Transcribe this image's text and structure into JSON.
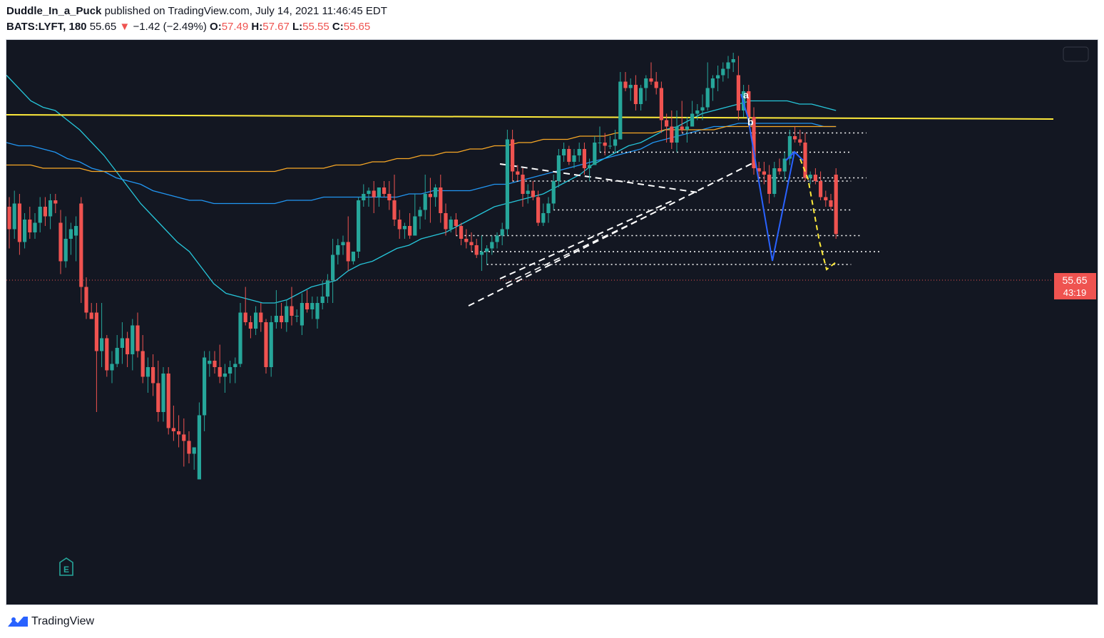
{
  "header": {
    "author": "Duddle_In_a_Puck",
    "published_text": "published on TradingView.com, July 14, 2021 11:46:45 EDT",
    "symbol": "BATS:LYFT, 180",
    "last": "55.65",
    "arrow": "▼",
    "change": "−1.42 (−2.49%)",
    "o_label": "O:",
    "o_value": "57.49",
    "h_label": "H:",
    "h_value": "57.67",
    "l_label": "L:",
    "l_value": "55.55",
    "c_label": "C:",
    "c_value": "55.65"
  },
  "price_tag": {
    "price": "55.65",
    "countdown": "43:19",
    "color": "#ef5350"
  },
  "earnings_marker": {
    "label": "E"
  },
  "drawing_labels": {
    "a": "a",
    "b": "b"
  },
  "footer": {
    "brand": "TradingView",
    "logo_icon": "tradingview-logo-icon"
  },
  "colors": {
    "background": "#131722",
    "up": "#26a69a",
    "down": "#ef5350",
    "ma_fast": "#26c6da",
    "ma_mid": "#2196f3",
    "ma_slow": "#f9a825",
    "resistance": "#ffeb3b",
    "wave": "#2962ff",
    "dash_projection": "#ffeb3b"
  },
  "chart_data": {
    "type": "candlestick",
    "symbol": "BATS:LYFT",
    "interval": "180",
    "last_price": 55.65,
    "ylim": [
      44.1,
      61.7
    ],
    "y_axis_visible": false,
    "grid": false,
    "candles": [
      [
        56.5,
        56.8,
        55.2,
        55.8
      ],
      [
        55.8,
        57.0,
        55.5,
        56.6
      ],
      [
        56.6,
        56.9,
        55.0,
        55.4
      ],
      [
        55.4,
        56.3,
        55.2,
        56.1
      ],
      [
        56.1,
        56.5,
        55.5,
        55.7
      ],
      [
        55.7,
        56.3,
        55.5,
        56.0
      ],
      [
        56.0,
        56.8,
        55.7,
        56.5
      ],
      [
        56.5,
        56.8,
        55.9,
        56.2
      ],
      [
        56.2,
        56.9,
        55.8,
        56.7
      ],
      [
        56.7,
        56.9,
        56.3,
        56.6
      ],
      [
        56.0,
        56.4,
        54.4,
        54.8
      ],
      [
        54.8,
        56.2,
        54.6,
        55.5
      ],
      [
        55.5,
        56.0,
        55.0,
        55.8
      ],
      [
        55.6,
        56.2,
        54.8,
        55.9
      ],
      [
        56.6,
        56.8,
        53.5,
        54.0
      ],
      [
        54.0,
        54.3,
        53.0,
        53.2
      ],
      [
        53.2,
        53.5,
        53.1,
        53.0
      ],
      [
        53.2,
        53.5,
        50.1,
        52.0
      ],
      [
        52.0,
        53.5,
        51.5,
        52.4
      ],
      [
        52.4,
        52.5,
        51.2,
        51.4
      ],
      [
        51.4,
        52.0,
        51.0,
        51.6
      ],
      [
        51.6,
        52.5,
        51.5,
        52.1
      ],
      [
        52.1,
        52.9,
        51.6,
        52.4
      ],
      [
        52.4,
        52.6,
        51.5,
        51.9
      ],
      [
        51.9,
        53.0,
        51.4,
        52.8
      ],
      [
        52.8,
        53.2,
        51.8,
        52.0
      ],
      [
        52.0,
        52.5,
        51.0,
        51.2
      ],
      [
        51.2,
        51.8,
        50.7,
        51.5
      ],
      [
        51.5,
        51.9,
        50.6,
        51.0
      ],
      [
        51.0,
        51.7,
        49.8,
        50.1
      ],
      [
        50.1,
        51.5,
        49.8,
        51.3
      ],
      [
        51.3,
        51.5,
        49.4,
        49.6
      ],
      [
        49.6,
        50.3,
        49.2,
        49.5
      ],
      [
        49.5,
        50.0,
        49.0,
        49.4
      ],
      [
        49.4,
        49.9,
        48.4,
        49.2
      ],
      [
        49.2,
        49.5,
        48.5,
        48.8
      ],
      [
        48.8,
        49.0,
        48.3,
        49.0
      ],
      [
        48.0,
        50.4,
        48.0,
        50.0
      ],
      [
        50.0,
        52.0,
        49.5,
        51.8
      ],
      [
        51.6,
        52.0,
        51.2,
        51.7
      ],
      [
        51.7,
        52.0,
        51.3,
        51.5
      ],
      [
        51.5,
        52.2,
        51.0,
        51.2
      ],
      [
        51.2,
        51.6,
        50.7,
        51.3
      ],
      [
        51.3,
        51.7,
        51.0,
        51.5
      ],
      [
        51.5,
        51.8,
        51.0,
        51.6
      ],
      [
        51.6,
        53.5,
        51.5,
        53.2
      ],
      [
        53.2,
        54.0,
        52.8,
        52.9
      ],
      [
        52.9,
        53.1,
        52.4,
        52.7
      ],
      [
        52.7,
        53.4,
        52.5,
        53.2
      ],
      [
        53.2,
        53.5,
        52.6,
        52.9
      ],
      [
        52.9,
        53.0,
        51.3,
        51.5
      ],
      [
        51.5,
        53.1,
        51.2,
        52.9
      ],
      [
        52.9,
        53.9,
        52.7,
        53.1
      ],
      [
        53.1,
        53.5,
        52.7,
        52.9
      ],
      [
        52.9,
        53.6,
        52.6,
        53.4
      ],
      [
        53.4,
        54.0,
        52.8,
        53.1
      ],
      [
        53.1,
        53.3,
        52.9,
        53.1
      ],
      [
        52.8,
        53.8,
        52.5,
        53.5
      ],
      [
        53.5,
        53.9,
        53.2,
        53.3
      ],
      [
        53.3,
        53.7,
        53.0,
        53.5
      ],
      [
        53.0,
        53.7,
        52.7,
        53.5
      ],
      [
        53.5,
        54.2,
        53.3,
        53.7
      ],
      [
        53.7,
        54.4,
        53.5,
        54.2
      ],
      [
        54.2,
        55.5,
        53.5,
        55.0
      ],
      [
        55.0,
        55.5,
        54.7,
        55.3
      ],
      [
        55.3,
        55.6,
        55.0,
        55.4
      ],
      [
        55.4,
        56.2,
        54.5,
        54.8
      ],
      [
        54.8,
        55.1,
        54.7,
        55.1
      ],
      [
        55.1,
        56.8,
        54.9,
        56.7
      ],
      [
        56.7,
        57.2,
        56.5,
        56.9
      ],
      [
        56.9,
        57.1,
        56.5,
        57.0
      ],
      [
        57.0,
        57.3,
        56.3,
        56.8
      ],
      [
        56.8,
        57.1,
        56.5,
        57.1
      ],
      [
        57.1,
        57.3,
        56.8,
        56.9
      ],
      [
        56.9,
        57.3,
        56.4,
        56.7
      ],
      [
        56.7,
        57.5,
        55.9,
        56.1
      ],
      [
        56.1,
        56.4,
        55.5,
        55.8
      ],
      [
        55.8,
        56.0,
        55.5,
        55.9
      ],
      [
        55.9,
        56.3,
        55.5,
        55.6
      ],
      [
        55.6,
        56.9,
        55.6,
        56.2
      ],
      [
        56.2,
        56.5,
        55.8,
        56.4
      ],
      [
        56.4,
        57.5,
        56.1,
        56.9
      ],
      [
        56.9,
        57.4,
        56.0,
        56.8
      ],
      [
        56.8,
        57.2,
        56.5,
        57.1
      ],
      [
        57.1,
        57.5,
        56.0,
        56.3
      ],
      [
        56.3,
        56.6,
        55.6,
        55.8
      ],
      [
        55.8,
        56.2,
        55.7,
        56.1
      ],
      [
        56.1,
        56.3,
        55.6,
        55.9
      ],
      [
        55.9,
        56.0,
        55.3,
        55.5
      ],
      [
        55.5,
        55.8,
        55.2,
        55.4
      ],
      [
        55.4,
        55.7,
        55.1,
        55.3
      ],
      [
        55.3,
        55.5,
        54.9,
        55.0
      ],
      [
        55.0,
        55.6,
        54.5,
        55.1
      ],
      [
        55.1,
        55.3,
        54.7,
        55.2
      ],
      [
        55.2,
        55.6,
        55.0,
        55.4
      ],
      [
        55.4,
        55.7,
        55.2,
        55.6
      ],
      [
        55.6,
        56.0,
        55.3,
        55.8
      ],
      [
        55.8,
        58.9,
        55.6,
        58.6
      ],
      [
        58.6,
        58.9,
        57.3,
        57.6
      ],
      [
        57.6,
        57.8,
        57.3,
        57.5
      ],
      [
        57.5,
        57.7,
        56.5,
        56.9
      ],
      [
        56.9,
        57.2,
        56.6,
        57.0
      ],
      [
        57.0,
        57.3,
        56.7,
        56.8
      ],
      [
        56.8,
        57.0,
        55.9,
        56.0
      ],
      [
        56.0,
        56.6,
        55.9,
        56.3
      ],
      [
        56.3,
        56.8,
        56.0,
        56.6
      ],
      [
        56.6,
        57.5,
        56.4,
        57.3
      ],
      [
        57.3,
        58.3,
        57.1,
        58.1
      ],
      [
        58.1,
        58.5,
        57.9,
        58.3
      ],
      [
        58.3,
        58.4,
        57.8,
        57.9
      ],
      [
        57.9,
        58.3,
        57.7,
        58.1
      ],
      [
        58.1,
        58.5,
        57.9,
        58.3
      ],
      [
        58.3,
        58.5,
        57.5,
        57.7
      ],
      [
        57.7,
        58.0,
        57.3,
        57.8
      ],
      [
        57.8,
        58.7,
        57.8,
        58.5
      ],
      [
        58.5,
        59.0,
        58.2,
        58.5
      ],
      [
        58.5,
        58.8,
        58.1,
        58.4
      ],
      [
        58.4,
        58.7,
        58.3,
        58.4
      ],
      [
        58.4,
        58.9,
        58.2,
        58.6
      ],
      [
        58.6,
        60.7,
        58.6,
        60.4
      ],
      [
        60.4,
        60.7,
        60.1,
        60.2
      ],
      [
        60.2,
        60.5,
        59.8,
        60.3
      ],
      [
        60.3,
        60.6,
        59.5,
        59.7
      ],
      [
        59.7,
        60.3,
        59.5,
        60.2
      ],
      [
        60.2,
        60.6,
        59.8,
        60.5
      ],
      [
        60.5,
        61.0,
        60.3,
        60.4
      ],
      [
        60.4,
        60.7,
        60.0,
        60.2
      ],
      [
        60.2,
        60.4,
        58.8,
        59.2
      ],
      [
        59.2,
        59.4,
        58.5,
        59.0
      ],
      [
        59.0,
        59.5,
        58.3,
        58.5
      ],
      [
        58.5,
        59.5,
        58.2,
        59.0
      ],
      [
        59.0,
        59.8,
        58.8,
        58.9
      ],
      [
        58.9,
        59.3,
        58.5,
        59.0
      ],
      [
        59.0,
        59.8,
        59.0,
        59.4
      ],
      [
        59.4,
        59.7,
        59.2,
        59.5
      ],
      [
        59.5,
        60.0,
        59.2,
        59.6
      ],
      [
        59.6,
        61.0,
        59.5,
        60.2
      ],
      [
        60.2,
        60.6,
        59.8,
        60.5
      ],
      [
        60.5,
        60.9,
        60.1,
        60.6
      ],
      [
        60.6,
        61.0,
        60.4,
        60.8
      ],
      [
        60.8,
        61.2,
        60.5,
        61.0
      ],
      [
        61.0,
        61.3,
        60.7,
        61.1
      ],
      [
        60.6,
        61.2,
        59.2,
        59.5
      ],
      [
        59.5,
        60.3,
        59.3,
        60.1
      ],
      [
        60.1,
        60.3,
        59.2,
        59.3
      ],
      [
        59.3,
        59.6,
        57.5,
        57.7
      ],
      [
        57.7,
        57.9,
        57.4,
        57.6
      ],
      [
        57.6,
        57.9,
        57.2,
        57.5
      ],
      [
        57.5,
        57.8,
        56.6,
        56.9
      ],
      [
        56.9,
        57.9,
        56.8,
        57.7
      ],
      [
        57.7,
        58.0,
        57.5,
        57.6
      ],
      [
        57.6,
        58.2,
        57.3,
        58.0
      ],
      [
        58.0,
        58.9,
        57.8,
        58.7
      ],
      [
        58.7,
        59.0,
        58.5,
        58.6
      ],
      [
        58.6,
        58.9,
        58.4,
        58.5
      ],
      [
        58.5,
        58.8,
        57.3,
        57.4
      ],
      [
        57.4,
        57.6,
        57.2,
        57.5
      ],
      [
        57.5,
        57.7,
        57.2,
        57.3
      ],
      [
        57.3,
        57.6,
        56.7,
        56.8
      ],
      [
        56.8,
        57.0,
        56.5,
        56.7
      ],
      [
        56.7,
        56.9,
        56.4,
        56.5
      ],
      [
        57.5,
        57.7,
        55.5,
        55.65
      ]
    ],
    "moving_averages": [
      {
        "period": 20,
        "color": "#26c6da",
        "values": [
          60.6,
          60.2,
          59.8,
          59.6,
          59.5,
          59.2,
          58.9,
          58.5,
          58.1,
          57.6,
          57.1,
          56.6,
          56.2,
          55.8,
          55.4,
          55.1,
          54.6,
          54.1,
          53.8,
          53.7,
          53.6,
          53.5,
          53.5,
          53.6,
          53.8,
          54.0,
          54.1,
          54.2,
          54.5,
          54.7,
          54.8,
          55.0,
          55.2,
          55.3,
          55.5,
          55.6,
          55.7,
          55.9,
          56.1,
          56.3,
          56.5,
          56.6,
          56.7,
          56.8,
          56.9,
          57.1,
          57.3,
          57.5,
          57.8,
          58.0,
          58.2,
          58.4,
          58.5,
          58.7,
          58.9,
          59.0,
          59.2,
          59.4,
          59.5,
          59.6,
          59.7,
          59.8,
          59.8,
          59.8,
          59.8,
          59.7,
          59.7,
          59.6,
          59.5
        ]
      },
      {
        "period": 50,
        "color": "#2196f3",
        "values": [
          58.5,
          58.4,
          58.4,
          58.3,
          58.2,
          58.0,
          57.9,
          57.7,
          57.6,
          57.4,
          57.3,
          57.2,
          57.0,
          56.9,
          56.8,
          56.7,
          56.7,
          56.6,
          56.6,
          56.6,
          56.6,
          56.6,
          56.6,
          56.7,
          56.7,
          56.7,
          56.8,
          56.8,
          56.8,
          56.8,
          56.8,
          56.8,
          56.8,
          56.9,
          56.9,
          57.0,
          57.0,
          57.0,
          57.0,
          57.1,
          57.2,
          57.2,
          57.3,
          57.4,
          57.5,
          57.6,
          57.7,
          57.8,
          57.9,
          58.0,
          58.1,
          58.2,
          58.3,
          58.5,
          58.6,
          58.7,
          58.8,
          58.9,
          59.0,
          59.0,
          59.1,
          59.1,
          59.1,
          59.1,
          59.1,
          59.1,
          59.1,
          59.0,
          59.0
        ]
      },
      {
        "period": 200,
        "color": "#f9a825",
        "values": [
          57.8,
          57.8,
          57.8,
          57.7,
          57.7,
          57.7,
          57.7,
          57.6,
          57.6,
          57.6,
          57.6,
          57.6,
          57.6,
          57.6,
          57.6,
          57.6,
          57.6,
          57.6,
          57.6,
          57.6,
          57.6,
          57.6,
          57.6,
          57.7,
          57.7,
          57.7,
          57.7,
          57.8,
          57.8,
          57.8,
          57.9,
          57.9,
          58.0,
          58.0,
          58.1,
          58.1,
          58.2,
          58.2,
          58.3,
          58.3,
          58.4,
          58.4,
          58.5,
          58.5,
          58.6,
          58.6,
          58.6,
          58.7,
          58.7,
          58.7,
          58.8,
          58.8,
          58.8,
          58.8,
          58.9,
          58.9,
          58.9,
          58.9,
          58.9,
          59.0,
          59.0,
          59.0,
          59.0,
          59.0,
          59.0,
          59.0,
          59.0,
          59.0,
          59.0
        ]
      }
    ]
  }
}
